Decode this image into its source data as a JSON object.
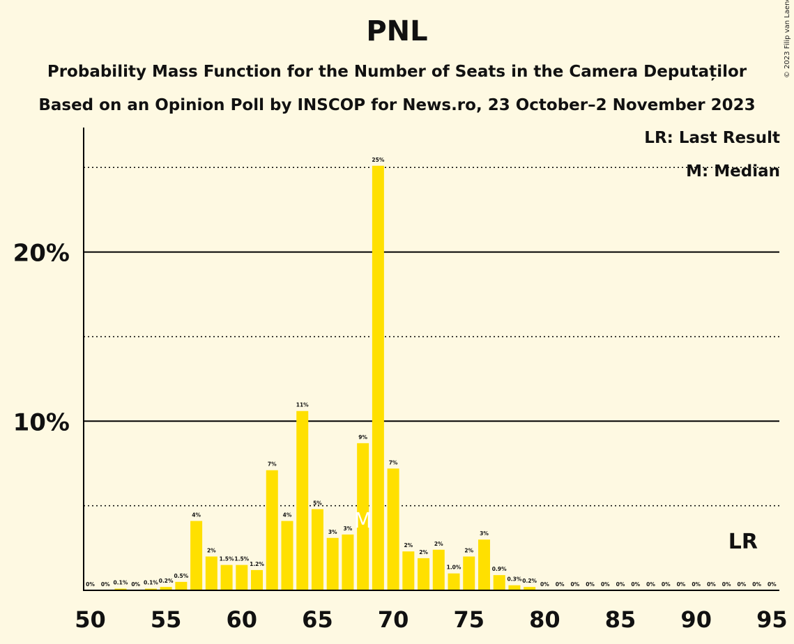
{
  "header": {
    "title": "PNL",
    "subtitle": "Probability Mass Function for the Number of Seats in the Camera Deputaților",
    "subtitle2": "Based on an Opinion Poll by INSCOP for News.ro, 23 October–2 November 2023",
    "copyright": "© 2023 Filip van Laenen"
  },
  "legend": {
    "last_result": "LR: Last Result",
    "median": "M: Median"
  },
  "colors": {
    "background": "#FEF9E2",
    "bar": "#FFE000",
    "axis": "#000000"
  },
  "chart_data": {
    "type": "bar",
    "title": "PNL",
    "xlabel": "",
    "ylabel": "",
    "ylim": [
      0,
      27
    ],
    "y_ticks": [
      10,
      20
    ],
    "y_tick_labels": [
      "10%",
      "20%"
    ],
    "y_dotted_lines": [
      5,
      15,
      25
    ],
    "x_ticks": [
      50,
      55,
      60,
      65,
      70,
      75,
      80,
      85,
      90,
      95
    ],
    "seats": [
      50,
      51,
      52,
      53,
      54,
      55,
      56,
      57,
      58,
      59,
      60,
      61,
      62,
      63,
      64,
      65,
      66,
      67,
      68,
      69,
      70,
      71,
      72,
      73,
      74,
      75,
      76,
      77,
      78,
      79,
      80,
      81,
      82,
      83,
      84,
      85,
      86,
      87,
      88,
      89,
      90,
      91,
      92,
      93,
      94,
      95
    ],
    "values": [
      0,
      0,
      0.1,
      0,
      0.1,
      0.2,
      0.5,
      4.1,
      2.0,
      1.5,
      1.5,
      1.2,
      7.1,
      4.1,
      10.6,
      4.8,
      3.1,
      3.3,
      8.7,
      25.1,
      7.2,
      2.3,
      1.9,
      2.4,
      1.0,
      2.0,
      3.0,
      0.9,
      0.3,
      0.2,
      0,
      0,
      0,
      0,
      0,
      0,
      0,
      0,
      0,
      0,
      0,
      0,
      0,
      0,
      0,
      0
    ],
    "labels": [
      "0%",
      "0%",
      "0.1%",
      "0%",
      "0.1%",
      "0.2%",
      "0.5%",
      "4%",
      "2%",
      "1.5%",
      "1.5%",
      "1.2%",
      "7%",
      "4%",
      "11%",
      "5%",
      "3%",
      "3%",
      "9%",
      "25%",
      "7%",
      "2%",
      "2%",
      "2%",
      "1.0%",
      "2%",
      "3%",
      "0.9%",
      "0.3%",
      "0.2%",
      "0%",
      "0%",
      "0%",
      "0%",
      "0%",
      "0%",
      "0%",
      "0%",
      "0%",
      "0%",
      "0%",
      "0%",
      "0%",
      "0%",
      "0%",
      "0%"
    ],
    "median_seat": 68,
    "median_label": "M",
    "last_result_seat": 93,
    "last_result_label": "LR"
  }
}
